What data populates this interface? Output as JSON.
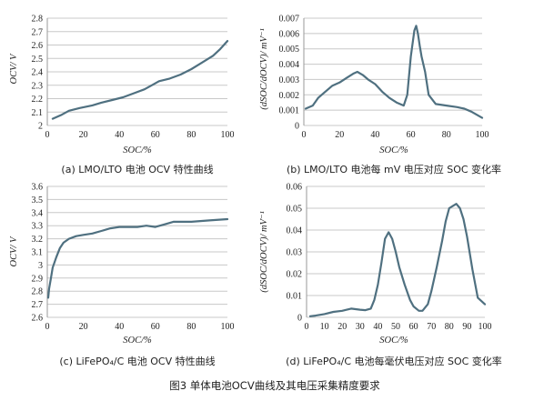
{
  "figure_caption": "图3 单体电池OCV曲线及其电压采集精度要求",
  "chart_data": [
    {
      "id": "a",
      "type": "line",
      "caption": "(a) LMO/LTO 电池 OCV 特性曲线",
      "xlabel": "SOC/%",
      "ylabel": "OCV/ V",
      "xlim": [
        0,
        100
      ],
      "ylim": [
        2.0,
        2.8
      ],
      "xticks": [
        0,
        20,
        40,
        60,
        80,
        100
      ],
      "yticks": [
        2.0,
        2.1,
        2.2,
        2.3,
        2.4,
        2.5,
        2.6,
        2.7,
        2.8
      ],
      "grid": "horizontal",
      "x": [
        3,
        8,
        12,
        18,
        25,
        30,
        36,
        42,
        48,
        54,
        58,
        62,
        68,
        74,
        80,
        86,
        92,
        96,
        100
      ],
      "y": [
        2.05,
        2.08,
        2.11,
        2.13,
        2.15,
        2.17,
        2.19,
        2.21,
        2.24,
        2.27,
        2.3,
        2.33,
        2.35,
        2.38,
        2.42,
        2.47,
        2.52,
        2.57,
        2.63
      ]
    },
    {
      "id": "b",
      "type": "line",
      "caption": "(b) LMO/LTO 电池每 mV 电压对应 SOC 变化率",
      "xlabel": "SOC/%",
      "ylabel": "(dSOC/dOCV)/ mV⁻¹",
      "xlim": [
        0,
        100
      ],
      "ylim": [
        0,
        0.007
      ],
      "xticks": [
        0,
        20,
        40,
        60,
        80,
        100
      ],
      "yticks": [
        0,
        0.001,
        0.002,
        0.003,
        0.004,
        0.005,
        0.006,
        0.007
      ],
      "grid": "horizontal",
      "x": [
        1,
        5,
        8,
        12,
        16,
        20,
        24,
        28,
        30,
        33,
        36,
        40,
        44,
        48,
        52,
        56,
        58,
        60,
        62,
        63,
        64,
        65,
        66,
        68,
        70,
        74,
        80,
        86,
        90,
        94,
        97,
        100
      ],
      "y": [
        0.0011,
        0.0013,
        0.0018,
        0.0022,
        0.0026,
        0.0028,
        0.0031,
        0.0034,
        0.0035,
        0.0033,
        0.003,
        0.0027,
        0.0022,
        0.0018,
        0.0015,
        0.0013,
        0.002,
        0.0045,
        0.0062,
        0.0065,
        0.006,
        0.0052,
        0.0045,
        0.0035,
        0.002,
        0.0014,
        0.0013,
        0.0012,
        0.0011,
        0.0009,
        0.0007,
        0.0005
      ]
    },
    {
      "id": "c",
      "type": "line",
      "caption": "(c) LiFePO₄/C 电池 OCV 特性曲线",
      "xlabel": "SOC/%",
      "ylabel": "OCV/ V",
      "xlim": [
        0,
        100
      ],
      "ylim": [
        2.6,
        3.6
      ],
      "xticks": [
        0,
        20,
        40,
        60,
        80,
        100
      ],
      "yticks": [
        2.6,
        2.7,
        2.8,
        2.9,
        3.0,
        3.1,
        3.2,
        3.3,
        3.4,
        3.5,
        3.6
      ],
      "grid": "horizontal",
      "x": [
        0.5,
        1,
        2,
        3,
        5,
        7,
        9,
        12,
        16,
        20,
        25,
        30,
        35,
        40,
        45,
        50,
        55,
        60,
        65,
        70,
        75,
        80,
        90,
        100
      ],
      "y": [
        2.75,
        2.82,
        2.9,
        2.98,
        3.06,
        3.13,
        3.17,
        3.2,
        3.22,
        3.23,
        3.24,
        3.26,
        3.28,
        3.29,
        3.29,
        3.29,
        3.3,
        3.29,
        3.31,
        3.33,
        3.33,
        3.33,
        3.34,
        3.35
      ]
    },
    {
      "id": "d",
      "type": "line",
      "caption": "(d) LiFePO₄/C 电池每毫伏电压对应 SOC 变化率",
      "xlabel": "SOC/%",
      "ylabel": "(dSOC/dOCV)/ mV⁻¹",
      "xlim": [
        0,
        100
      ],
      "ylim": [
        0,
        0.06
      ],
      "xticks": [
        0,
        10,
        20,
        30,
        40,
        50,
        60,
        70,
        80,
        90,
        100
      ],
      "yticks": [
        0,
        0.01,
        0.02,
        0.03,
        0.04,
        0.05,
        0.06
      ],
      "grid": "horizontal",
      "x": [
        2,
        5,
        10,
        15,
        20,
        25,
        30,
        33,
        36,
        38,
        40,
        42,
        44,
        46,
        48,
        50,
        52,
        55,
        58,
        60,
        63,
        65,
        68,
        70,
        73,
        76,
        78,
        80,
        82,
        84,
        86,
        88,
        90,
        93,
        96,
        100
      ],
      "y": [
        0.0005,
        0.0008,
        0.0015,
        0.0025,
        0.003,
        0.004,
        0.0035,
        0.0033,
        0.004,
        0.008,
        0.015,
        0.025,
        0.036,
        0.039,
        0.036,
        0.03,
        0.023,
        0.015,
        0.008,
        0.005,
        0.003,
        0.003,
        0.006,
        0.012,
        0.023,
        0.035,
        0.044,
        0.05,
        0.051,
        0.052,
        0.05,
        0.045,
        0.037,
        0.022,
        0.009,
        0.006
      ]
    }
  ]
}
